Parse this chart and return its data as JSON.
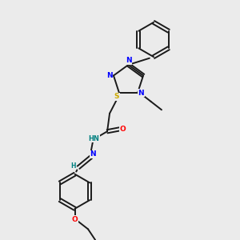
{
  "background_color": "#ebebeb",
  "colors": {
    "bond": "#1a1a1a",
    "nitrogen": "#0000ff",
    "oxygen": "#ff0000",
    "sulfur": "#ccaa00",
    "teal": "#008080",
    "background": "#ebebeb"
  },
  "layout": {
    "xlim": [
      0,
      10
    ],
    "ylim": [
      0,
      10
    ]
  }
}
